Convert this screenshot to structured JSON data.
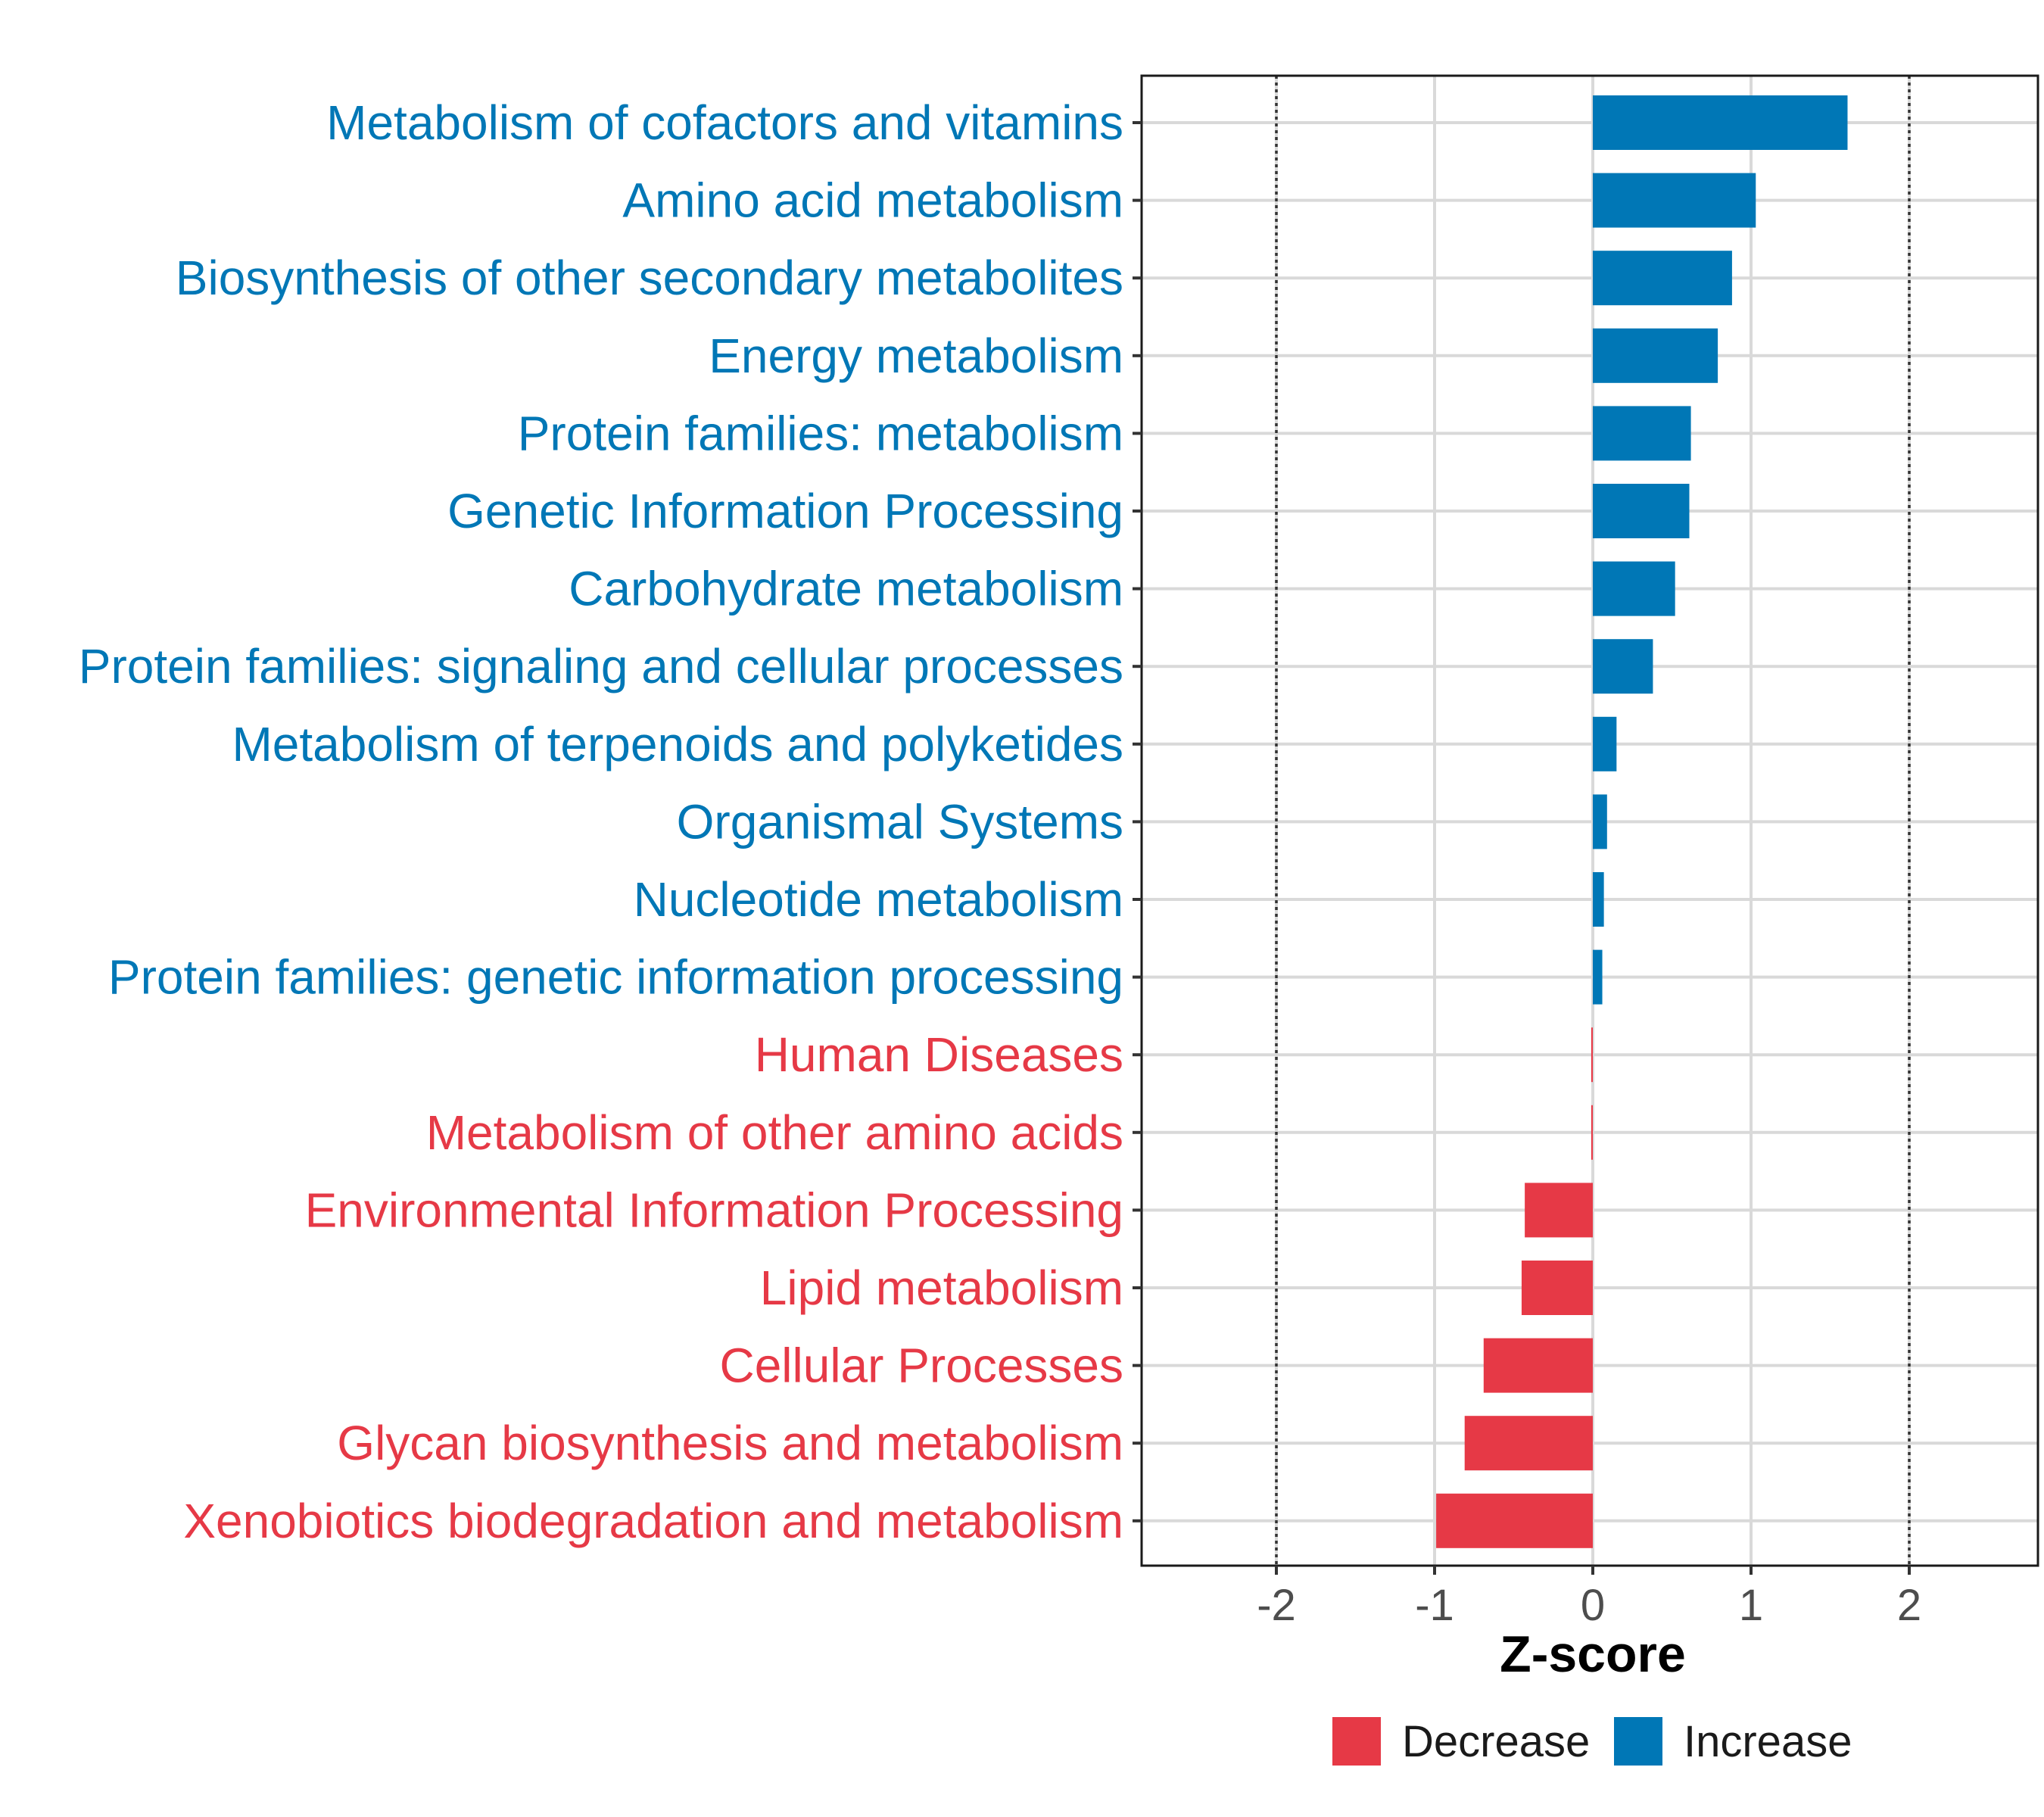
{
  "chart_data": {
    "type": "bar",
    "orientation": "horizontal",
    "title": "",
    "xlabel": "Z-score",
    "ylabel": "",
    "xlim": [
      -2.85,
      2.85
    ],
    "xticks": [
      -2,
      -1,
      0,
      1,
      2
    ],
    "xtick_labels": [
      "-2",
      "-1",
      "0",
      "1",
      "2"
    ],
    "reference_lines": [
      -2,
      2
    ],
    "grid": true,
    "legend_position": "bottom",
    "categories": [
      "Metabolism of cofactors and vitamins",
      "Amino acid metabolism",
      "Biosynthesis of other secondary metabolites",
      "Energy metabolism",
      "Protein families: metabolism",
      "Genetic Information Processing",
      "Carbohydrate metabolism",
      "Protein families: signaling and cellular processes",
      "Metabolism of terpenoids and polyketides",
      "Organismal Systems",
      "Nucleotide metabolism",
      "Protein families: genetic information processing",
      "Human Diseases",
      "Metabolism of other amino acids",
      "Environmental Information Processing",
      "Lipid metabolism",
      "Cellular Processes",
      "Glycan biosynthesis and metabolism",
      "Xenobiotics biodegradation and metabolism"
    ],
    "values": [
      1.61,
      1.03,
      0.88,
      0.79,
      0.62,
      0.61,
      0.52,
      0.38,
      0.15,
      0.09,
      0.07,
      0.06,
      -0.01,
      -0.01,
      -0.43,
      -0.45,
      -0.69,
      -0.81,
      -0.99
    ],
    "groups": [
      "Increase",
      "Increase",
      "Increase",
      "Increase",
      "Increase",
      "Increase",
      "Increase",
      "Increase",
      "Increase",
      "Increase",
      "Increase",
      "Increase",
      "Decrease",
      "Decrease",
      "Decrease",
      "Decrease",
      "Decrease",
      "Decrease",
      "Decrease"
    ],
    "legend": [
      {
        "name": "Decrease",
        "color": "#e63946"
      },
      {
        "name": "Increase",
        "color": "#0077b6"
      }
    ]
  }
}
